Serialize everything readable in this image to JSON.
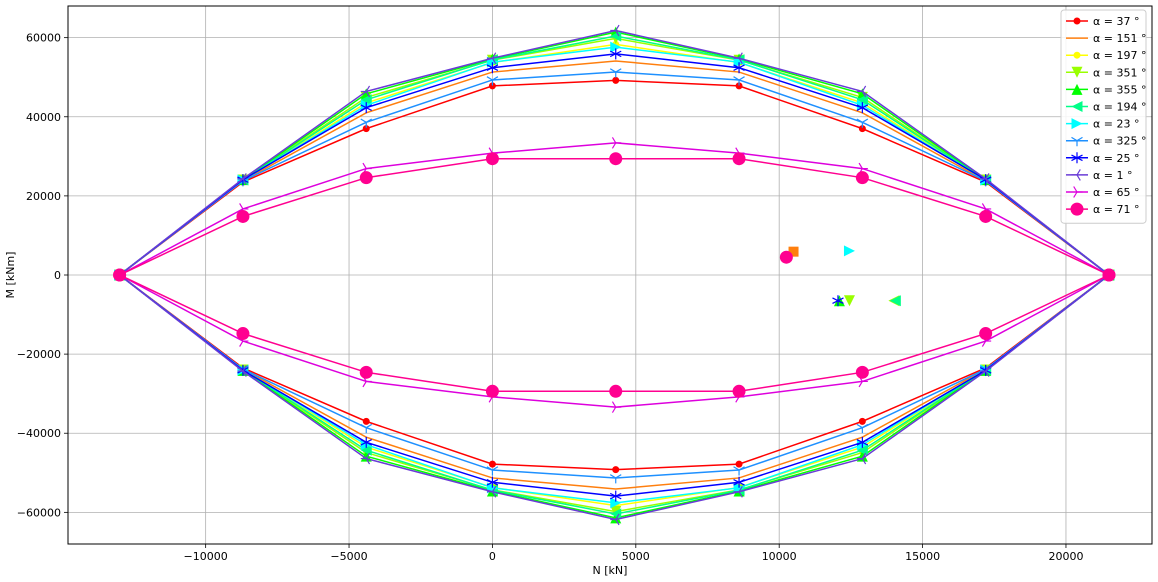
{
  "chart_data": {
    "type": "line",
    "xlabel": "N [kN]",
    "ylabel": "M [kNm]",
    "xlim": [
      -14800,
      23000
    ],
    "ylim": [
      -68000,
      68000
    ],
    "xticks": [
      -10000,
      -5000,
      0,
      5000,
      10000,
      15000,
      20000
    ],
    "yticks": [
      -60000,
      -40000,
      -20000,
      0,
      20000,
      40000,
      60000
    ],
    "xtick_labels": [
      "−10000",
      "−5000",
      "0",
      "5000",
      "10000",
      "15000",
      "20000"
    ],
    "ytick_labels": [
      "−60000",
      "−40000",
      "−20000",
      "0",
      "20000",
      "40000",
      "60000"
    ],
    "grid": true,
    "legend_position": "top-right",
    "x": [
      -13000,
      -8700,
      -4400,
      0,
      4300,
      8600,
      12900,
      17200,
      21500
    ],
    "series": [
      {
        "name": "α = 37 °",
        "color": "#ff0000",
        "marker": "circle",
        "upper": [
          0,
          23500,
          37000,
          47800,
          49200,
          47800,
          37000,
          23500,
          0
        ]
      },
      {
        "name": "α = 151 °",
        "color": "#ff7f0e",
        "marker": "none",
        "upper": [
          0,
          23800,
          41000,
          51300,
          54100,
          51300,
          41000,
          23800,
          0
        ]
      },
      {
        "name": "α = 197 °",
        "color": "#ffff00",
        "marker": "circle",
        "upper": [
          0,
          23900,
          43500,
          53700,
          58300,
          53700,
          43500,
          23900,
          0
        ]
      },
      {
        "name": "α = 351 °",
        "color": "#99ff00",
        "marker": "triangle-down",
        "upper": [
          0,
          24000,
          44900,
          54300,
          59800,
          54300,
          44900,
          24000,
          0
        ]
      },
      {
        "name": "α = 355 °",
        "color": "#00ff00",
        "marker": "triangle-up",
        "upper": [
          0,
          24100,
          45800,
          54600,
          61400,
          54600,
          45800,
          24100,
          0
        ]
      },
      {
        "name": "α = 194 °",
        "color": "#00ff88",
        "marker": "triangle-left",
        "upper": [
          0,
          24000,
          44300,
          54400,
          60400,
          54400,
          44300,
          24000,
          0
        ]
      },
      {
        "name": "α = 23 °",
        "color": "#00ffff",
        "marker": "triangle-right",
        "upper": [
          0,
          24000,
          42900,
          53800,
          57600,
          53800,
          42900,
          24000,
          0
        ]
      },
      {
        "name": "α = 325 °",
        "color": "#1e90ff",
        "marker": "tri-down",
        "upper": [
          0,
          23800,
          38600,
          49300,
          51300,
          49300,
          38600,
          23800,
          0
        ]
      },
      {
        "name": "α = 25 °",
        "color": "#0000ff",
        "marker": "star",
        "upper": [
          0,
          24100,
          42300,
          52400,
          55900,
          52400,
          42300,
          24100,
          0
        ]
      },
      {
        "name": "α = 1 °",
        "color": "#6a3cd6",
        "marker": "tri-left",
        "upper": [
          0,
          24300,
          46400,
          54800,
          61800,
          54800,
          46400,
          24300,
          0
        ]
      },
      {
        "name": "α = 65 °",
        "color": "#dd00dd",
        "marker": "tri-right",
        "upper": [
          0,
          16700,
          26900,
          30800,
          33400,
          30800,
          26900,
          16700,
          0
        ]
      },
      {
        "name": "α = 71 °",
        "color": "#ff0090",
        "marker": "big-circle",
        "upper": [
          0,
          14800,
          24600,
          29400,
          29400,
          29400,
          24600,
          14800,
          0
        ]
      }
    ],
    "scatter_points": [
      {
        "x": 10500,
        "y": 5900,
        "color": "#ff7f0e",
        "marker": "square"
      },
      {
        "x": 10250,
        "y": 4500,
        "color": "#ff0090",
        "marker": "big-circle"
      },
      {
        "x": 12450,
        "y": 6100,
        "color": "#00ffff",
        "marker": "triangle-right"
      },
      {
        "x": 12450,
        "y": -6500,
        "color": "#99ff00",
        "marker": "triangle-down"
      },
      {
        "x": 12100,
        "y": -6500,
        "color": "#00ff00",
        "marker": "triangle-up"
      },
      {
        "x": 12050,
        "y": -6500,
        "color": "#0000ff",
        "marker": "star"
      },
      {
        "x": 14000,
        "y": -6500,
        "color": "#99ff00",
        "marker": "triangle-left"
      },
      {
        "x": 14050,
        "y": -6500,
        "color": "#00ff88",
        "marker": "triangle-left"
      }
    ]
  }
}
